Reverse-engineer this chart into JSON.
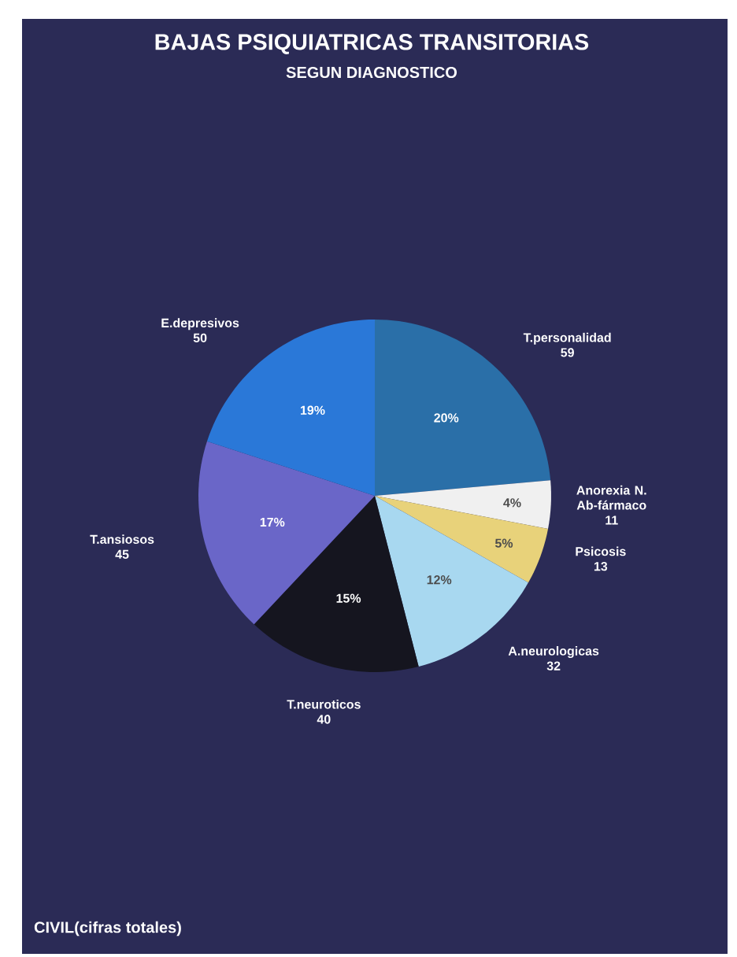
{
  "chart_data": {
    "type": "pie",
    "title": "BAJAS PSIQUIATRICAS TRANSITORIAS",
    "subtitle": "SEGUN DIAGNOSTICO",
    "categories": [
      "T.personalidad",
      "Anorexia N. Ab-fármaco",
      "Psicosis",
      "A.neurologicas",
      "T.neuroticos",
      "T.ansiosos",
      "E.depresivos"
    ],
    "values": [
      59,
      11,
      13,
      32,
      40,
      45,
      50
    ],
    "colors": [
      "#2a6fa8",
      "#f0f0f0",
      "#e8d27a",
      "#a8d8f0",
      "#15151f",
      "#6a66c8",
      "#2a78d8"
    ],
    "data_labels": true,
    "annotations": [
      "20%",
      "4%",
      "5%",
      "12%",
      "15%",
      "17%",
      "19%",
      "CIVIL(cifras totales)"
    ]
  }
}
